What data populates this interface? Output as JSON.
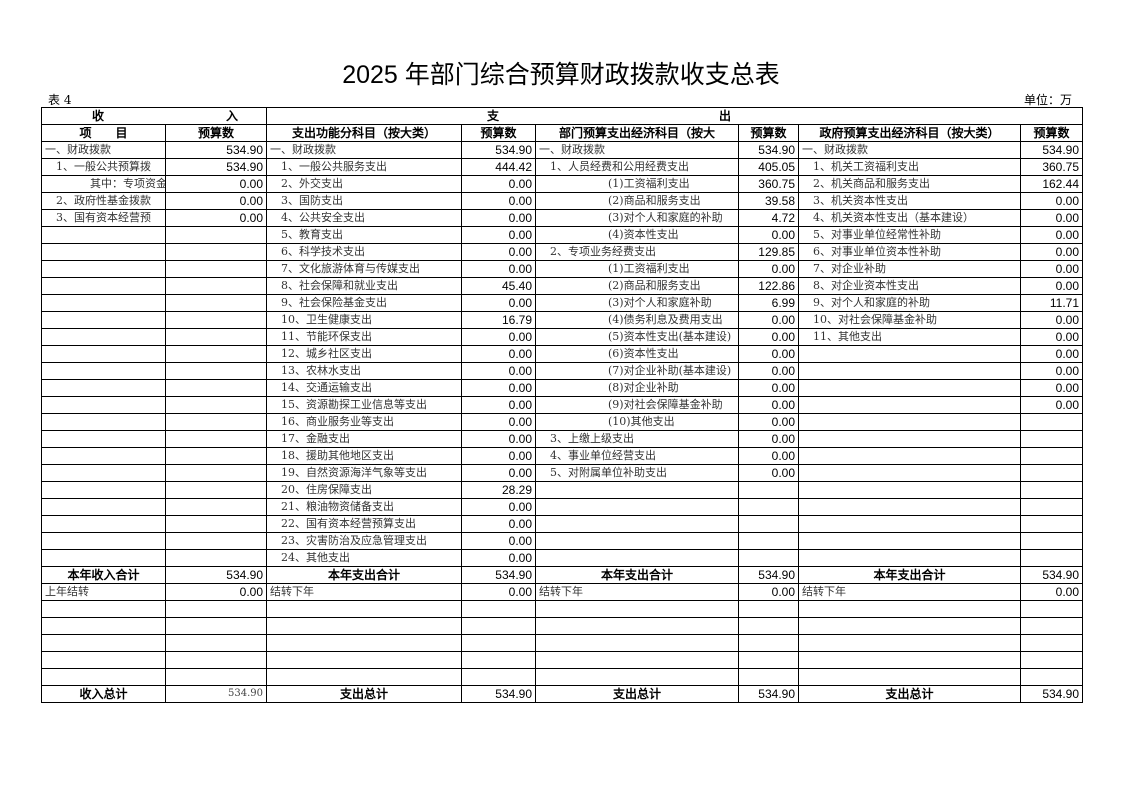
{
  "title": "2025 年部门综合预算财政拨款收支总表",
  "table_no": "表 4",
  "unit": "单位：万",
  "group_headers": {
    "income_left": "收",
    "income_right": "入",
    "expense_left": "支",
    "expense_right": "出"
  },
  "headers": [
    "项　　目",
    "预算数",
    "支出功能分科目（按大类）",
    "预算数",
    "部门预算支出经济科目（按大",
    "预算数",
    "政府预算支出经济科目（按大类）",
    "预算数"
  ],
  "rows": [
    [
      "一、财政拨款",
      "534.90",
      "一、财政拨款",
      "534.90",
      "一、财政拨款",
      "534.90",
      "一、财政拨款",
      "534.90"
    ],
    [
      "1、一般公共预算拨",
      "534.90",
      "1、一般公共服务支出",
      "444.42",
      "1、人员经费和公用经费支出",
      "405.05",
      "1、机关工资福利支出",
      "360.75"
    ],
    [
      "其中：专项资金",
      "0.00",
      "2、外交支出",
      "0.00",
      "(1)工资福利支出",
      "360.75",
      "2、机关商品和服务支出",
      "162.44"
    ],
    [
      "2、政府性基金拨款",
      "0.00",
      "3、国防支出",
      "0.00",
      "(2)商品和服务支出",
      "39.58",
      "3、机关资本性支出",
      "0.00"
    ],
    [
      "3、国有资本经营预",
      "0.00",
      "4、公共安全支出",
      "0.00",
      "(3)对个人和家庭的补助",
      "4.72",
      "4、机关资本性支出（基本建设）",
      "0.00"
    ],
    [
      "",
      "",
      "5、教育支出",
      "0.00",
      "(4)资本性支出",
      "0.00",
      "5、对事业单位经常性补助",
      "0.00"
    ],
    [
      "",
      "",
      "6、科学技术支出",
      "0.00",
      "2、专项业务经费支出",
      "129.85",
      "6、对事业单位资本性补助",
      "0.00"
    ],
    [
      "",
      "",
      "7、文化旅游体育与传媒支出",
      "0.00",
      "(1)工资福利支出",
      "0.00",
      "7、对企业补助",
      "0.00"
    ],
    [
      "",
      "",
      "8、社会保障和就业支出",
      "45.40",
      "(2)商品和服务支出",
      "122.86",
      "8、对企业资本性支出",
      "0.00"
    ],
    [
      "",
      "",
      "9、社会保险基金支出",
      "0.00",
      "(3)对个人和家庭补助",
      "6.99",
      "9、对个人和家庭的补助",
      "11.71"
    ],
    [
      "",
      "",
      "10、卫生健康支出",
      "16.79",
      "(4)债务利息及费用支出",
      "0.00",
      "10、对社会保障基金补助",
      "0.00"
    ],
    [
      "",
      "",
      "11、节能环保支出",
      "0.00",
      "(5)资本性支出(基本建设)",
      "0.00",
      "11、其他支出",
      "0.00"
    ],
    [
      "",
      "",
      "12、城乡社区支出",
      "0.00",
      "(6)资本性支出",
      "0.00",
      "",
      "0.00"
    ],
    [
      "",
      "",
      "13、农林水支出",
      "0.00",
      "(7)对企业补助(基本建设)",
      "0.00",
      "",
      "0.00"
    ],
    [
      "",
      "",
      "14、交通运输支出",
      "0.00",
      "(8)对企业补助",
      "0.00",
      "",
      "0.00"
    ],
    [
      "",
      "",
      "15、资源勘探工业信息等支出",
      "0.00",
      "(9)对社会保障基金补助",
      "0.00",
      "",
      "0.00"
    ],
    [
      "",
      "",
      "16、商业服务业等支出",
      "0.00",
      "(10)其他支出",
      "0.00",
      "",
      ""
    ],
    [
      "",
      "",
      "17、金融支出",
      "0.00",
      "3、上缴上级支出",
      "0.00",
      "",
      ""
    ],
    [
      "",
      "",
      "18、援助其他地区支出",
      "0.00",
      "4、事业单位经营支出",
      "0.00",
      "",
      ""
    ],
    [
      "",
      "",
      "19、自然资源海洋气象等支出",
      "0.00",
      "5、对附属单位补助支出",
      "0.00",
      "",
      ""
    ],
    [
      "",
      "",
      "20、住房保障支出",
      "28.29",
      "",
      "",
      "",
      ""
    ],
    [
      "",
      "",
      "21、粮油物资储备支出",
      "0.00",
      "",
      "",
      "",
      ""
    ],
    [
      "",
      "",
      "22、国有资本经营预算支出",
      "0.00",
      "",
      "",
      "",
      ""
    ],
    [
      "",
      "",
      "23、灾害防治及应急管理支出",
      "0.00",
      "",
      "",
      "",
      ""
    ],
    [
      "",
      "",
      "24、其他支出",
      "0.00",
      "",
      "",
      "",
      ""
    ]
  ],
  "subtotal": [
    "本年收入合计",
    "534.90",
    "本年支出合计",
    "534.90",
    "本年支出合计",
    "534.90",
    "本年支出合计",
    "534.90"
  ],
  "carry": [
    "上年结转",
    "0.00",
    "结转下年",
    "0.00",
    "结转下年",
    "0.00",
    "结转下年",
    "0.00"
  ],
  "total": [
    "收入总计",
    "534.90",
    "支出总计",
    "534.90",
    "支出总计",
    "534.90",
    "支出总计",
    "534.90"
  ]
}
